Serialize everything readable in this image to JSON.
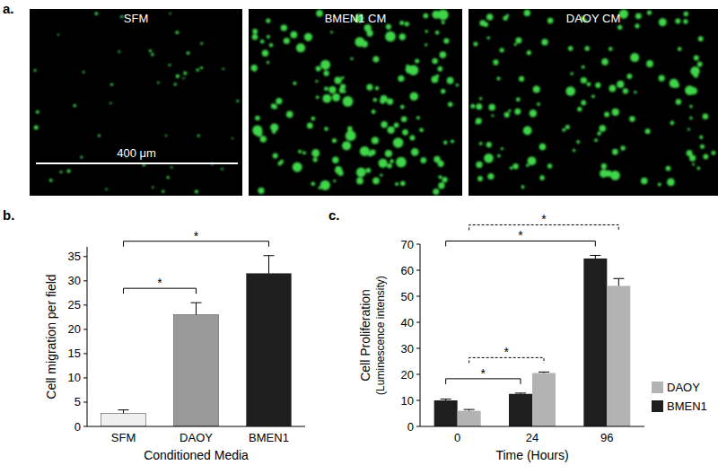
{
  "images": {
    "label": "a.",
    "panels": [
      "SFM",
      "BMEN1 CM",
      "DAOY CM"
    ],
    "scale_bar": "400 μm"
  },
  "chart_data": [
    {
      "type": "bar",
      "title": "b.",
      "categories": [
        "SFM",
        "DAOY",
        "BMEN1"
      ],
      "values": [
        2.7,
        23,
        31.5
      ],
      "errors": [
        0.7,
        2.5,
        3.7
      ],
      "colors": [
        "#efefef",
        "#999999",
        "#1e1e1e"
      ],
      "ylabel": "Cell migration per field",
      "xlabel": "Conditioned Media",
      "ylim": [
        0,
        37
      ],
      "yticks": [
        0,
        5,
        10,
        15,
        20,
        25,
        30,
        35
      ],
      "grid": false,
      "annotations": [
        {
          "from": "SFM",
          "to": "DAOY",
          "text": "*"
        },
        {
          "from": "SFM",
          "to": "BMEN1",
          "text": "*"
        }
      ]
    },
    {
      "type": "bar",
      "title": "c.",
      "categories": [
        "0",
        "24",
        "96"
      ],
      "series": [
        {
          "name": "BMEN1",
          "color": "#1e1e1e",
          "values": [
            10,
            12.5,
            64.5
          ],
          "errors": [
            0.5,
            0.3,
            1.2
          ]
        },
        {
          "name": "DAOY",
          "color": "#b3b3b3",
          "values": [
            6,
            20.5,
            54
          ],
          "errors": [
            0.5,
            0.4,
            2.8
          ]
        }
      ],
      "ylabel": [
        "Cell Proliferation",
        "(Luminescence intensity)"
      ],
      "xlabel": "Time (Hours)",
      "ylim": [
        0,
        70
      ],
      "yticks": [
        0,
        10,
        20,
        30,
        40,
        50,
        60,
        70
      ],
      "grid": false,
      "legend": "right",
      "annotations": [
        {
          "series": "BMEN1",
          "from": "0",
          "to": "24",
          "text": "*",
          "line_style": "solid"
        },
        {
          "series": "DAOY",
          "from": "0",
          "to": "24",
          "text": "*",
          "line_style": "dashed"
        },
        {
          "series": "BMEN1",
          "from": "0",
          "to": "96",
          "text": "*",
          "line_style": "solid"
        },
        {
          "series": "DAOY",
          "from": "0",
          "to": "96",
          "text": "*",
          "line_style": "dashed"
        }
      ]
    }
  ]
}
